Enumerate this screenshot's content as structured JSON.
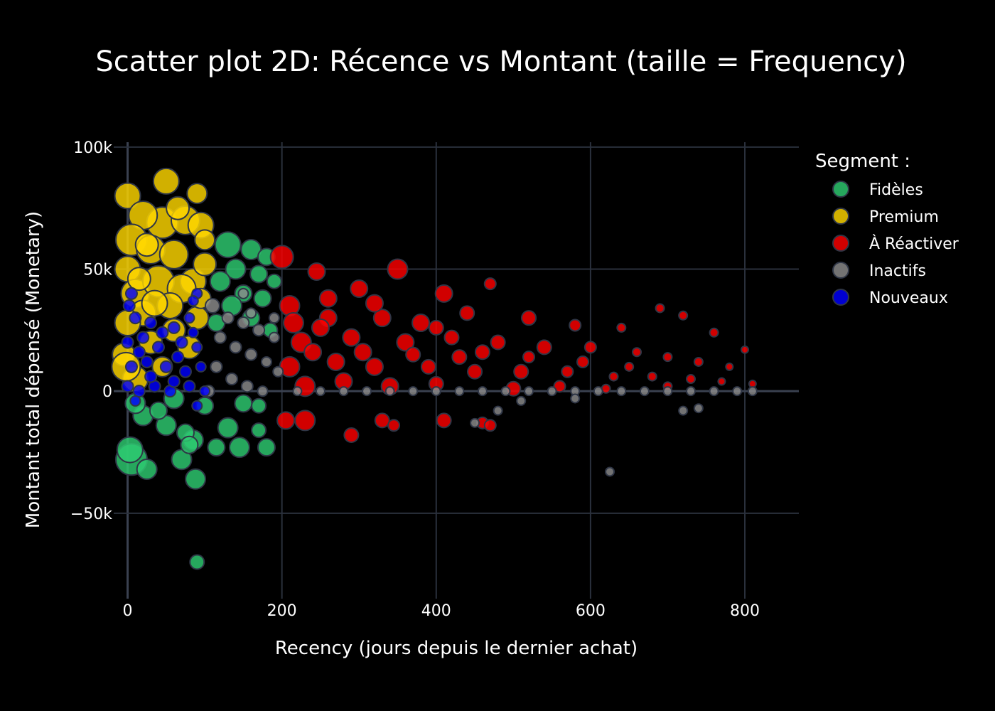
{
  "chart_data": {
    "type": "scatter",
    "title": "Scatter plot 2D: Récence vs Montant (taille = Frequency)",
    "xlabel": "Recency (jours depuis le dernier achat)",
    "ylabel": "Montant total dépensé (Monetary)",
    "xlim": [
      -18,
      870
    ],
    "ylim": [
      -85000,
      102000
    ],
    "xticks": [
      0,
      200,
      400,
      600,
      800
    ],
    "xtick_labels": [
      "0",
      "200",
      "400",
      "600",
      "800"
    ],
    "yticks": [
      -50000,
      0,
      50000,
      100000
    ],
    "ytick_labels": [
      "−50k",
      "0",
      "50k",
      "100k"
    ],
    "grid": true,
    "legend_title": "Segment :",
    "legend_position": "top-right",
    "series": [
      {
        "name": "Fidèles",
        "color": "#2ecc71",
        "points": [
          [
            5,
            -28000,
            22
          ],
          [
            3,
            -24000,
            18
          ],
          [
            25,
            -32000,
            14
          ],
          [
            88,
            -36000,
            14
          ],
          [
            70,
            -28000,
            14
          ],
          [
            85,
            -20000,
            14
          ],
          [
            75,
            -17000,
            12
          ],
          [
            80,
            -22000,
            12
          ],
          [
            115,
            -23000,
            12
          ],
          [
            145,
            -23000,
            14
          ],
          [
            180,
            -23000,
            12
          ],
          [
            170,
            -16000,
            10
          ],
          [
            90,
            -70000,
            10
          ],
          [
            50,
            -14000,
            14
          ],
          [
            130,
            -15000,
            14
          ],
          [
            20,
            -10000,
            14
          ],
          [
            40,
            -8000,
            12
          ],
          [
            100,
            -6000,
            12
          ],
          [
            150,
            -5000,
            12
          ],
          [
            170,
            -6000,
            10
          ],
          [
            10,
            -5000,
            14
          ],
          [
            60,
            -3000,
            14
          ],
          [
            130,
            60000,
            18
          ],
          [
            160,
            58000,
            14
          ],
          [
            180,
            55000,
            12
          ],
          [
            140,
            50000,
            14
          ],
          [
            170,
            48000,
            12
          ],
          [
            120,
            45000,
            14
          ],
          [
            150,
            40000,
            12
          ],
          [
            175,
            38000,
            12
          ],
          [
            135,
            35000,
            14
          ],
          [
            160,
            30000,
            12
          ],
          [
            185,
            25000,
            10
          ],
          [
            115,
            28000,
            12
          ],
          [
            190,
            45000,
            10
          ]
        ]
      },
      {
        "name": "Premium",
        "color": "#ffd700",
        "points": [
          [
            50,
            86000,
            18
          ],
          [
            0,
            80000,
            18
          ],
          [
            90,
            81000,
            14
          ],
          [
            45,
            69000,
            22
          ],
          [
            20,
            72000,
            20
          ],
          [
            75,
            70000,
            20
          ],
          [
            5,
            62000,
            22
          ],
          [
            95,
            68000,
            18
          ],
          [
            30,
            58000,
            20
          ],
          [
            60,
            56000,
            20
          ],
          [
            0,
            50000,
            18
          ],
          [
            85,
            45000,
            18
          ],
          [
            10,
            40000,
            20
          ],
          [
            40,
            45000,
            22
          ],
          [
            70,
            42000,
            20
          ],
          [
            100,
            52000,
            16
          ],
          [
            20,
            32000,
            18
          ],
          [
            55,
            35000,
            18
          ],
          [
            90,
            30000,
            16
          ],
          [
            0,
            28000,
            18
          ],
          [
            60,
            25000,
            16
          ],
          [
            30,
            20000,
            16
          ],
          [
            -5,
            15000,
            16
          ],
          [
            80,
            18000,
            16
          ],
          [
            95,
            38000,
            14
          ],
          [
            10,
            5000,
            18
          ],
          [
            45,
            10000,
            14
          ],
          [
            25,
            60000,
            16
          ],
          [
            65,
            75000,
            16
          ],
          [
            100,
            62000,
            14
          ],
          [
            -2,
            10000,
            20
          ],
          [
            35,
            36000,
            18
          ],
          [
            15,
            46000,
            16
          ]
        ]
      },
      {
        "name": "À Réactiver",
        "color": "#ff0000",
        "points": [
          [
            200,
            55000,
            16
          ],
          [
            350,
            50000,
            14
          ],
          [
            245,
            49000,
            12
          ],
          [
            300,
            42000,
            12
          ],
          [
            410,
            40000,
            12
          ],
          [
            470,
            44000,
            8
          ],
          [
            210,
            35000,
            14
          ],
          [
            260,
            30000,
            12
          ],
          [
            330,
            30000,
            12
          ],
          [
            380,
            28000,
            12
          ],
          [
            440,
            32000,
            10
          ],
          [
            520,
            30000,
            10
          ],
          [
            580,
            27000,
            8
          ],
          [
            640,
            26000,
            6
          ],
          [
            690,
            34000,
            6
          ],
          [
            720,
            31000,
            6
          ],
          [
            760,
            24000,
            6
          ],
          [
            800,
            17000,
            5
          ],
          [
            225,
            20000,
            14
          ],
          [
            250,
            26000,
            12
          ],
          [
            290,
            22000,
            12
          ],
          [
            360,
            20000,
            12
          ],
          [
            420,
            22000,
            10
          ],
          [
            480,
            20000,
            10
          ],
          [
            540,
            18000,
            10
          ],
          [
            600,
            18000,
            8
          ],
          [
            660,
            16000,
            6
          ],
          [
            700,
            14000,
            6
          ],
          [
            740,
            12000,
            6
          ],
          [
            780,
            10000,
            5
          ],
          [
            210,
            10000,
            14
          ],
          [
            270,
            12000,
            12
          ],
          [
            320,
            10000,
            12
          ],
          [
            390,
            10000,
            10
          ],
          [
            450,
            8000,
            10
          ],
          [
            510,
            8000,
            10
          ],
          [
            570,
            8000,
            8
          ],
          [
            630,
            6000,
            6
          ],
          [
            680,
            6000,
            6
          ],
          [
            730,
            5000,
            6
          ],
          [
            770,
            4000,
            5
          ],
          [
            810,
            3000,
            5
          ],
          [
            205,
            -12000,
            12
          ],
          [
            230,
            -12000,
            14
          ],
          [
            290,
            -18000,
            10
          ],
          [
            330,
            -12000,
            10
          ],
          [
            345,
            -14000,
            8
          ],
          [
            410,
            -12000,
            10
          ],
          [
            460,
            -13000,
            8
          ],
          [
            470,
            -14000,
            8
          ],
          [
            230,
            2000,
            14
          ],
          [
            280,
            4000,
            12
          ],
          [
            340,
            2000,
            12
          ],
          [
            400,
            3000,
            10
          ],
          [
            500,
            1000,
            10
          ],
          [
            560,
            2000,
            8
          ],
          [
            620,
            1000,
            6
          ],
          [
            700,
            2000,
            6
          ],
          [
            650,
            10000,
            6
          ],
          [
            590,
            12000,
            8
          ],
          [
            520,
            14000,
            8
          ],
          [
            460,
            16000,
            10
          ],
          [
            400,
            26000,
            10
          ],
          [
            260,
            38000,
            12
          ],
          [
            320,
            36000,
            12
          ],
          [
            215,
            28000,
            14
          ],
          [
            240,
            16000,
            12
          ],
          [
            305,
            16000,
            12
          ],
          [
            370,
            15000,
            10
          ],
          [
            430,
            14000,
            10
          ]
        ]
      },
      {
        "name": "Inactifs",
        "color": "#8c8c8c",
        "points": [
          [
            110,
            35000,
            10
          ],
          [
            130,
            30000,
            8
          ],
          [
            150,
            28000,
            8
          ],
          [
            170,
            25000,
            8
          ],
          [
            190,
            22000,
            7
          ],
          [
            120,
            22000,
            8
          ],
          [
            140,
            18000,
            8
          ],
          [
            160,
            15000,
            8
          ],
          [
            180,
            12000,
            7
          ],
          [
            195,
            8000,
            7
          ],
          [
            115,
            10000,
            8
          ],
          [
            135,
            5000,
            8
          ],
          [
            155,
            2000,
            8
          ],
          [
            175,
            0,
            7
          ],
          [
            105,
            0,
            8
          ],
          [
            150,
            40000,
            7
          ],
          [
            190,
            30000,
            7
          ],
          [
            160,
            32000,
            7
          ],
          [
            220,
            0,
            6
          ],
          [
            250,
            0,
            6
          ],
          [
            280,
            0,
            6
          ],
          [
            310,
            0,
            6
          ],
          [
            340,
            0,
            6
          ],
          [
            370,
            0,
            6
          ],
          [
            400,
            0,
            6
          ],
          [
            430,
            0,
            6
          ],
          [
            460,
            0,
            6
          ],
          [
            490,
            0,
            6
          ],
          [
            520,
            0,
            6
          ],
          [
            550,
            0,
            6
          ],
          [
            580,
            0,
            6
          ],
          [
            610,
            0,
            6
          ],
          [
            640,
            0,
            6
          ],
          [
            670,
            0,
            6
          ],
          [
            700,
            0,
            6
          ],
          [
            730,
            0,
            6
          ],
          [
            760,
            0,
            6
          ],
          [
            790,
            0,
            6
          ],
          [
            810,
            0,
            6
          ],
          [
            625,
            -33000,
            6
          ],
          [
            720,
            -8000,
            6
          ],
          [
            740,
            -7000,
            6
          ],
          [
            450,
            -13000,
            6
          ],
          [
            480,
            -8000,
            6
          ],
          [
            510,
            -4000,
            6
          ],
          [
            580,
            -3000,
            6
          ]
        ]
      },
      {
        "name": "Nouveaux",
        "color": "#0000ff",
        "points": [
          [
            5,
            40000,
            8
          ],
          [
            2,
            35000,
            8
          ],
          [
            90,
            40000,
            7
          ],
          [
            85,
            37000,
            7
          ],
          [
            10,
            30000,
            8
          ],
          [
            30,
            28000,
            8
          ],
          [
            60,
            26000,
            8
          ],
          [
            80,
            30000,
            7
          ],
          [
            0,
            20000,
            8
          ],
          [
            20,
            22000,
            8
          ],
          [
            40,
            18000,
            8
          ],
          [
            70,
            20000,
            8
          ],
          [
            90,
            18000,
            7
          ],
          [
            5,
            10000,
            8
          ],
          [
            25,
            12000,
            8
          ],
          [
            50,
            10000,
            8
          ],
          [
            75,
            8000,
            8
          ],
          [
            95,
            10000,
            7
          ],
          [
            0,
            2000,
            8
          ],
          [
            15,
            0,
            8
          ],
          [
            35,
            2000,
            8
          ],
          [
            55,
            0,
            8
          ],
          [
            80,
            2000,
            8
          ],
          [
            100,
            0,
            7
          ],
          [
            45,
            24000,
            8
          ],
          [
            65,
            14000,
            8
          ],
          [
            15,
            16000,
            8
          ],
          [
            85,
            24000,
            7
          ],
          [
            30,
            6000,
            8
          ],
          [
            60,
            4000,
            8
          ],
          [
            10,
            -4000,
            7
          ],
          [
            90,
            -6000,
            7
          ]
        ]
      }
    ]
  }
}
